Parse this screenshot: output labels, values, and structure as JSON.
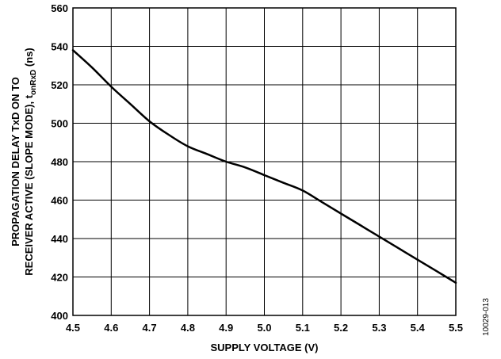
{
  "figure_id": "10029-013",
  "chart_data": {
    "type": "line",
    "xlabel": "SUPPLY VOLTAGE (V)",
    "ylabel_line1": "PROPAGATION DELAY TxD ON TO",
    "ylabel_line2_prefix": "RECEIVER ACTIVE (SLOPE MODE), t",
    "ylabel_line2_sub": "onRxD",
    "ylabel_line2_suffix": " (ns)",
    "xlim": [
      4.5,
      5.5
    ],
    "ylim": [
      400,
      560
    ],
    "x_ticks": [
      "4.5",
      "4.6",
      "4.7",
      "4.8",
      "4.9",
      "5.0",
      "5.1",
      "5.2",
      "5.3",
      "5.4",
      "5.5"
    ],
    "y_ticks": [
      "400",
      "420",
      "440",
      "460",
      "480",
      "500",
      "520",
      "540",
      "560"
    ],
    "grid": true,
    "series": [
      {
        "color": "#000000",
        "x": [
          4.5,
          4.55,
          4.6,
          4.65,
          4.7,
          4.75,
          4.8,
          4.85,
          4.9,
          4.95,
          5.0,
          5.05,
          5.1,
          5.15,
          5.2,
          5.25,
          5.3,
          5.35,
          5.4,
          5.45,
          5.5
        ],
        "y": [
          538,
          529,
          519,
          510,
          501,
          494,
          488,
          484,
          480,
          477,
          473,
          469,
          465,
          459,
          453,
          447,
          441,
          435,
          429,
          423,
          417
        ]
      }
    ]
  }
}
